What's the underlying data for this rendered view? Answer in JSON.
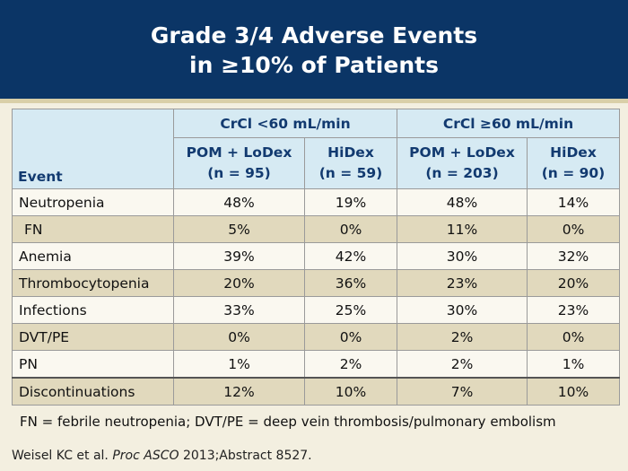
{
  "slide": {
    "title_line1": "Grade 3/4 Adverse Events",
    "title_line2": "in ≥10% of Patients",
    "colors": {
      "header_bg": "#0b3566",
      "table_header_bg": "#d6eaf3",
      "row_light": "#faf8f0",
      "row_dark": "#e1d9bd"
    }
  },
  "table": {
    "event_header": "Event",
    "groups": [
      "CrCl <60 mL/min",
      "CrCl ≥60 mL/min"
    ],
    "subheaders": [
      {
        "arm": "POM + LoDex",
        "n": "(n = 95)"
      },
      {
        "arm": "HiDex",
        "n": "(n = 59)"
      },
      {
        "arm": "POM + LoDex",
        "n": "(n = 203)"
      },
      {
        "arm": "HiDex",
        "n": "(n = 90)"
      }
    ],
    "rows": [
      {
        "event": "Neutropenia",
        "values": [
          "48%",
          "19%",
          "48%",
          "14%"
        ]
      },
      {
        "event": "FN",
        "values": [
          "5%",
          "0%",
          "11%",
          "0%"
        ]
      },
      {
        "event": "Anemia",
        "values": [
          "39%",
          "42%",
          "30%",
          "32%"
        ]
      },
      {
        "event": "Thrombocytopenia",
        "values": [
          "20%",
          "36%",
          "23%",
          "20%"
        ]
      },
      {
        "event": "Infections",
        "values": [
          "33%",
          "25%",
          "30%",
          "23%"
        ]
      },
      {
        "event": "DVT/PE",
        "values": [
          "0%",
          "0%",
          "2%",
          "0%"
        ]
      },
      {
        "event": "PN",
        "values": [
          "1%",
          "2%",
          "2%",
          "1%"
        ]
      },
      {
        "event": "Discontinuations",
        "values": [
          "12%",
          "10%",
          "7%",
          "10%"
        ]
      }
    ]
  },
  "footnote": "FN = febrile neutropenia; DVT/PE = deep vein thrombosis/pulmonary embolism",
  "citation": {
    "prefix": "Weisel KC et al. ",
    "journal": "Proc ASCO",
    "suffix": " 2013;Abstract 8527."
  }
}
